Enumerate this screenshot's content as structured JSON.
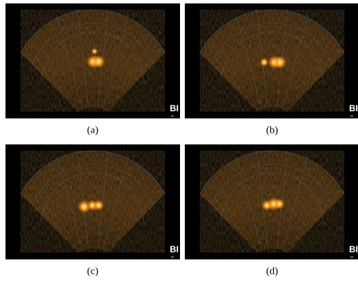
{
  "panels": [
    {
      "caption": "(a)",
      "logo": "BI",
      "logo_sub": "TE"
    },
    {
      "caption": "(b)",
      "logo": "BI",
      "logo_sub": "TE"
    },
    {
      "caption": "(c)",
      "logo": "BI",
      "logo_sub": "TE"
    },
    {
      "caption": "(d)",
      "logo": "BI",
      "logo_sub": "TE"
    }
  ]
}
